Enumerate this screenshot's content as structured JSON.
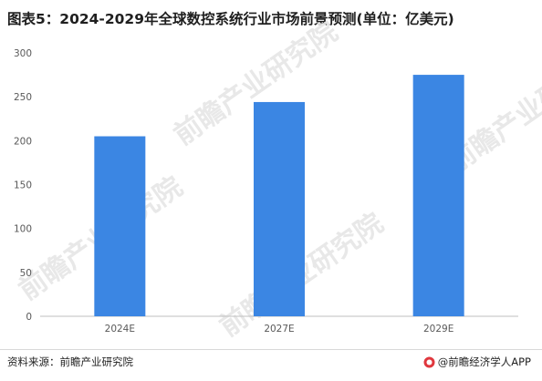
{
  "chart_data": {
    "type": "bar",
    "title": "图表5：2024-2029年全球数控系统行业市场前景预测(单位：亿美元)",
    "categories": [
      "2024E",
      "2027E",
      "2029E"
    ],
    "values": [
      205,
      244,
      275
    ],
    "ylim": [
      0,
      300
    ],
    "yticks": [
      0,
      50,
      100,
      150,
      200,
      250,
      300
    ],
    "xlabel": "",
    "ylabel": "",
    "grid": false,
    "legend": "none",
    "bar_color": "#3b86e3"
  },
  "footer": {
    "source": "资料来源：前瞻产业研究院",
    "credit": "@前瞻经济学人APP"
  },
  "watermark": {
    "text": "前瞻产业研究院"
  }
}
